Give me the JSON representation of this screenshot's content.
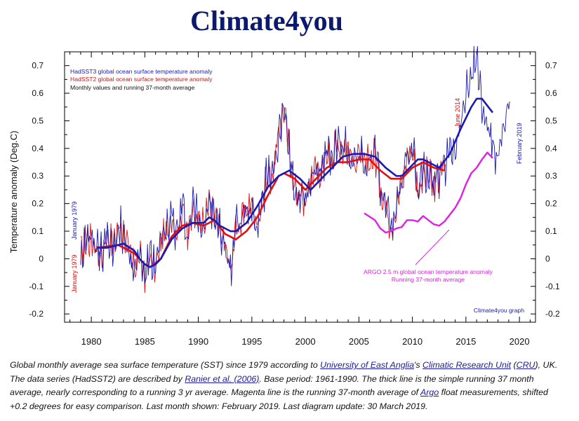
{
  "site_title": "Climate4you",
  "caption": {
    "t1": "Global monthly average sea surface temperature (SST) since 1979 according to ",
    "l1": "University of East Anglia",
    "t2": "'s ",
    "l2": "Climatic Research Unit",
    "t3": " (",
    "l3": "CRU",
    "t4": "), UK. The data series (HadSST2) are described by ",
    "l4": "Ranier et al. (2006)",
    "t5": ". Base period: 1961-1990. The thick line is the simple running 37 month average, nearly corresponding to a running 3 yr average. Magenta line is the running 37-month average of ",
    "l5": "Argo",
    "t6": " float measurements, shifted +0.2 degrees for easy comparison. Last month shown: February 2019. Last diagram update: 30 March 2019."
  },
  "chart_data": {
    "type": "line",
    "ylabel": "Temperature anomaly (Deg.C)",
    "xlabel": "",
    "xlim": [
      1977.5,
      2021.5
    ],
    "ylim": [
      -0.23,
      0.75
    ],
    "x_ticks": [
      1980,
      1985,
      1990,
      1995,
      2000,
      2005,
      2010,
      2015,
      2020
    ],
    "y_ticks": [
      0.7,
      0.6,
      0.5,
      0.4,
      0.3,
      0.2,
      0.1,
      0,
      -0.1,
      -0.2
    ],
    "y_tick_labels": [
      "0.7",
      "0.6",
      "0.5",
      "0.4",
      "0.3",
      "0.2",
      "0.1",
      "0",
      "-0.1",
      "-0.2"
    ],
    "legend": [
      {
        "text": "HadSST3 global ocean surface temperature anomaly",
        "color": "#1a1ab0"
      },
      {
        "text": "HadSST2 global ocean surface temperature anomaly",
        "color": "#e01010"
      },
      {
        "text": "Monthly values and running 37-month average",
        "color": "#111111"
      }
    ],
    "annotations": {
      "jan1979_blue": "January 1979",
      "jan1979_red": "January 1979",
      "june2014": "June 2014",
      "feb2019": "February 2019",
      "argo_line1": "ARGO 2.5 m global ocean temperature anomaly",
      "argo_line2": "Running 37-month average",
      "credit": "Climate4you graph"
    },
    "colors": {
      "hadsst3": "#1a1ab0",
      "hadsst2": "#e01010",
      "argo": "#e020e0",
      "frame": "#000000"
    },
    "series": [
      {
        "name": "HadSST3 global ocean surface temperature anomaly",
        "role": "running-37-month-average",
        "x": [
          1980.5,
          1981.5,
          1982.5,
          1983,
          1984,
          1984.5,
          1985,
          1985.5,
          1986,
          1986.5,
          1987.5,
          1988.5,
          1989,
          1989.5,
          1990.5,
          1991,
          1991.5,
          1992,
          1993,
          1993.5,
          1994.5,
          1995.5,
          1996.5,
          1997.5,
          1998.5,
          1999.5,
          2000.5,
          2001.5,
          2002.5,
          2003.5,
          2004.5,
          2005.5,
          2006.5,
          2007.5,
          2008.5,
          2009,
          2010,
          2010.5,
          2011,
          2012,
          2012.5,
          2013.5,
          2014.5,
          2015.5,
          2016,
          2016.5,
          2017.5
        ],
        "y": [
          0.04,
          0.04,
          0.05,
          0.055,
          0.03,
          0.0,
          -0.02,
          -0.03,
          -0.02,
          0.0,
          0.07,
          0.11,
          0.12,
          0.13,
          0.13,
          0.15,
          0.14,
          0.12,
          0.1,
          0.1,
          0.13,
          0.19,
          0.26,
          0.3,
          0.32,
          0.29,
          0.25,
          0.29,
          0.33,
          0.37,
          0.38,
          0.38,
          0.37,
          0.33,
          0.3,
          0.3,
          0.34,
          0.36,
          0.36,
          0.34,
          0.33,
          0.38,
          0.47,
          0.55,
          0.58,
          0.58,
          0.53
        ]
      },
      {
        "name": "HadSST2 global ocean surface temperature anomaly",
        "role": "running-37-month-average",
        "x": [
          1980.5,
          1982.5,
          1984,
          1985,
          1985.5,
          1986.5,
          1987.5,
          1988.5,
          1989.5,
          1990.5,
          1991.5,
          1992.5,
          1993.5,
          1994.5,
          1995.5,
          1996.5,
          1997.5,
          1998,
          1999,
          2000,
          2001,
          2002,
          2003,
          2004,
          2005,
          2006,
          2007,
          2008,
          2009,
          2010,
          2011,
          2012,
          2013
        ],
        "y": [
          0.04,
          0.05,
          0.02,
          -0.02,
          -0.03,
          0.0,
          0.08,
          0.12,
          0.13,
          0.12,
          0.14,
          0.09,
          0.07,
          0.1,
          0.15,
          0.23,
          0.3,
          0.31,
          0.29,
          0.25,
          0.29,
          0.33,
          0.35,
          0.35,
          0.36,
          0.36,
          0.32,
          0.29,
          0.29,
          0.33,
          0.35,
          0.33,
          0.32
        ]
      },
      {
        "name": "ARGO 2.5 m global ocean temperature anomaly",
        "role": "running-37-month-average",
        "x": [
          2005.5,
          2006.5,
          2007,
          2007.5,
          2008,
          2008.5,
          2009,
          2009.5,
          2010,
          2010.5,
          2011,
          2011.5,
          2012,
          2012.5,
          2013,
          2013.5,
          2014,
          2014.5,
          2015,
          2015.5,
          2016,
          2016.5,
          2017,
          2017.5
        ],
        "y": [
          0.165,
          0.14,
          0.11,
          0.095,
          0.1,
          0.11,
          0.115,
          0.14,
          0.14,
          0.135,
          0.155,
          0.14,
          0.125,
          0.12,
          0.135,
          0.16,
          0.185,
          0.22,
          0.27,
          0.31,
          0.33,
          0.36,
          0.385,
          0.365
        ]
      }
    ],
    "monthly_seed_points": {
      "x": [
        1979,
        1979.5,
        1980,
        1980.5,
        1981,
        1981.5,
        1982,
        1982.5,
        1983,
        1983.5,
        1984,
        1984.5,
        1985,
        1985.5,
        1986,
        1986.5,
        1987,
        1987.5,
        1988,
        1988.5,
        1989,
        1989.5,
        1990,
        1990.5,
        1991,
        1991.5,
        1992,
        1992.5,
        1993,
        1993.5,
        1994,
        1994.5,
        1995,
        1995.5,
        1996,
        1996.5,
        1997,
        1997.5,
        1998,
        1998.5,
        1999,
        1999.5,
        2000,
        2000.5,
        2001,
        2001.5,
        2002,
        2002.5,
        2003,
        2003.5,
        2004,
        2004.5,
        2005,
        2005.5,
        2006,
        2006.5,
        2007,
        2007.5,
        2008,
        2008.5,
        2009,
        2009.5,
        2010,
        2010.5,
        2011,
        2011.5,
        2012,
        2012.5,
        2013,
        2013.5,
        2014,
        2014.5,
        2015,
        2015.5,
        2016,
        2016.5,
        2017,
        2017.5,
        2018,
        2018.5,
        2019
      ],
      "y": [
        0.02,
        0.06,
        0.07,
        0.04,
        0.0,
        0.11,
        0.03,
        0.12,
        0.1,
        0.02,
        -0.03,
        0.01,
        -0.06,
        0.01,
        -0.04,
        0.06,
        0.09,
        0.17,
        0.08,
        0.2,
        0.07,
        0.2,
        0.15,
        0.12,
        0.2,
        0.15,
        0.1,
        0.05,
        -0.05,
        0.12,
        0.13,
        0.18,
        0.2,
        0.12,
        0.23,
        0.3,
        0.31,
        0.45,
        0.55,
        0.38,
        0.25,
        0.23,
        0.2,
        0.3,
        0.33,
        0.32,
        0.38,
        0.37,
        0.42,
        0.4,
        0.4,
        0.35,
        0.38,
        0.33,
        0.35,
        0.38,
        0.26,
        0.2,
        0.12,
        0.18,
        0.28,
        0.37,
        0.4,
        0.25,
        0.3,
        0.31,
        0.25,
        0.3,
        0.34,
        0.4,
        0.42,
        0.49,
        0.6,
        0.68,
        0.73,
        0.56,
        0.47,
        0.42,
        0.37,
        0.5,
        0.54
      ]
    }
  }
}
